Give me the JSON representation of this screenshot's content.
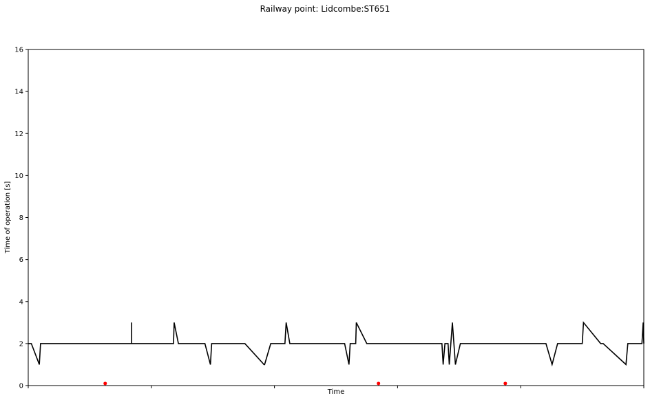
{
  "chart_data": {
    "type": "line",
    "title": "Railway point: Lidcombe:ST651",
    "xlabel": "Time",
    "ylabel": "Time of operation [s]",
    "ylim": [
      0,
      16
    ],
    "yticks": [
      0,
      2,
      4,
      6,
      8,
      10,
      12,
      14,
      16
    ],
    "xlim": [
      0,
      100
    ],
    "grid": false,
    "line_color": "#000000",
    "marker_color": "#ff0000",
    "series": [
      {
        "x": [
          0,
          0.5,
          1.8,
          2.0,
          16.8,
          16.8,
          16.8,
          17.0,
          23.6,
          23.7,
          24.4,
          28.7,
          29.6,
          29.8,
          34.9,
          35.2,
          38.3,
          38.4,
          39.4,
          41.7,
          41.9,
          42.5,
          51.4,
          52.1,
          52.3,
          53.2,
          53.3,
          55.0,
          55.2,
          55.4,
          67.2,
          67.4,
          67.7,
          68.2,
          68.4,
          68.9,
          69.4,
          70.2,
          84.1,
          85.1,
          86.0,
          87.5,
          90.0,
          90.2,
          93.0,
          93.4,
          97.1,
          97.4,
          97.6,
          99.7,
          99.9,
          100
        ],
        "y": [
          2,
          2,
          1,
          2,
          2,
          3,
          2,
          2,
          2,
          3,
          2,
          2,
          1,
          2,
          2,
          2,
          1,
          1,
          2,
          2,
          3,
          2,
          2,
          1,
          2,
          2,
          3,
          2,
          2,
          2,
          2,
          1,
          2,
          2,
          1,
          3,
          1,
          2,
          2,
          1,
          2,
          2,
          2,
          3,
          2,
          2,
          1,
          2,
          2,
          2,
          3,
          2
        ]
      }
    ],
    "markers": [
      {
        "x": 12.5,
        "y": 0.1
      },
      {
        "x": 56.9,
        "y": 0.1
      },
      {
        "x": 77.5,
        "y": 0.1
      }
    ]
  }
}
